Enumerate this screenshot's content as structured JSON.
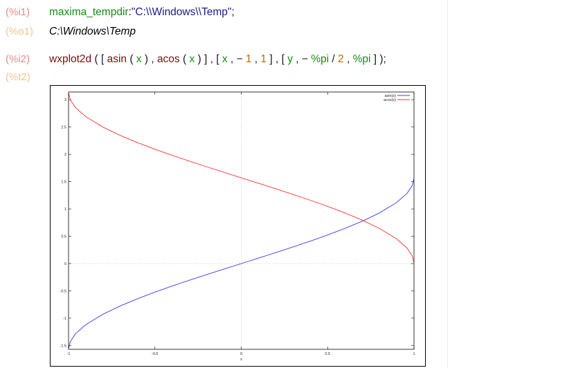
{
  "cells": [
    {
      "label": "(%i1)",
      "tokens": [
        {
          "t": "maxima_tempdir",
          "k": "var"
        },
        {
          "t": ":",
          "k": "op"
        },
        {
          "t": "\"C:\\\\Windows\\\\Temp\"",
          "k": "str"
        },
        {
          "t": ";",
          "k": "op"
        }
      ]
    },
    {
      "label": "(%o1)",
      "output": "C:\\Windows\\Temp"
    },
    {
      "label": "(%i2)",
      "tokens": [
        {
          "t": "wxplot2d",
          "k": "fn"
        },
        {
          "t": " ( [ ",
          "k": "op"
        },
        {
          "t": "asin",
          "k": "fn"
        },
        {
          "t": " ( ",
          "k": "op"
        },
        {
          "t": "x",
          "k": "var"
        },
        {
          "t": " ) , ",
          "k": "op"
        },
        {
          "t": "acos",
          "k": "fn"
        },
        {
          "t": " ( ",
          "k": "op"
        },
        {
          "t": "x",
          "k": "var"
        },
        {
          "t": " ) ] , [ ",
          "k": "op"
        },
        {
          "t": "x",
          "k": "var"
        },
        {
          "t": " , − ",
          "k": "op"
        },
        {
          "t": "1",
          "k": "num"
        },
        {
          "t": " , ",
          "k": "op"
        },
        {
          "t": "1",
          "k": "num"
        },
        {
          "t": " ] , [ ",
          "k": "op"
        },
        {
          "t": "y",
          "k": "var"
        },
        {
          "t": " , − ",
          "k": "op"
        },
        {
          "t": "%pi",
          "k": "cst"
        },
        {
          "t": " / ",
          "k": "op"
        },
        {
          "t": "2",
          "k": "num"
        },
        {
          "t": " , ",
          "k": "op"
        },
        {
          "t": "%pi",
          "k": "cst"
        },
        {
          "t": " ] );",
          "k": "op"
        }
      ]
    },
    {
      "label": "(%t2)"
    }
  ],
  "colors": {
    "input_label": "#e8898a",
    "output_label": "#f2c48e",
    "asin_series": "#3a3aff",
    "acos_series": "#ff3030",
    "grid": "#bbbbbb"
  },
  "chart_data": {
    "type": "line",
    "xlabel": "x",
    "ylabel": "",
    "title": "",
    "xlim": [
      -1,
      1
    ],
    "ylim": [
      -1.571,
      3.142
    ],
    "xticks": [
      -1,
      -0.5,
      0,
      0.5,
      1
    ],
    "xtick_labels": [
      "-1",
      "-0.5",
      "0",
      "0.5",
      "1"
    ],
    "yticks": [
      -1.5,
      -1,
      -0.5,
      0,
      0.5,
      1,
      1.5,
      2,
      2.5,
      3
    ],
    "ytick_labels": [
      "-1.5",
      "-1",
      "-0.5",
      "0",
      "0.5",
      "1",
      "1.5",
      "2",
      "2.5",
      "3"
    ],
    "zero_axes_dotted": true,
    "legend_position": "top-right",
    "series": [
      {
        "name": "asin(x)",
        "color": "#3a3aff",
        "x": [
          -1,
          -0.99,
          -0.96,
          -0.9,
          -0.8,
          -0.7,
          -0.6,
          -0.5,
          -0.4,
          -0.3,
          -0.2,
          -0.1,
          0,
          0.1,
          0.2,
          0.3,
          0.4,
          0.5,
          0.6,
          0.7,
          0.8,
          0.9,
          0.96,
          0.99,
          1
        ],
        "y": [
          -1.5708,
          -1.4293,
          -1.287,
          -1.1198,
          -0.9273,
          -0.7754,
          -0.6435,
          -0.5236,
          -0.4115,
          -0.3047,
          -0.2014,
          -0.1002,
          0,
          0.1002,
          0.2014,
          0.3047,
          0.4115,
          0.5236,
          0.6435,
          0.7754,
          0.9273,
          1.1198,
          1.287,
          1.4293,
          1.5708
        ]
      },
      {
        "name": "acos(x)",
        "color": "#ff3030",
        "x": [
          -1,
          -0.99,
          -0.96,
          -0.9,
          -0.8,
          -0.7,
          -0.6,
          -0.5,
          -0.4,
          -0.3,
          -0.2,
          -0.1,
          0,
          0.1,
          0.2,
          0.3,
          0.4,
          0.5,
          0.6,
          0.7,
          0.8,
          0.9,
          0.96,
          0.99,
          1
        ],
        "y": [
          3.1416,
          3.0001,
          2.8578,
          2.6906,
          2.4981,
          2.3462,
          2.2143,
          2.0944,
          1.9823,
          1.8755,
          1.7722,
          1.671,
          1.5708,
          1.4706,
          1.3694,
          1.2661,
          1.1593,
          1.0472,
          0.9273,
          0.7954,
          0.6435,
          0.451,
          0.2838,
          0.1415,
          0
        ]
      }
    ]
  }
}
